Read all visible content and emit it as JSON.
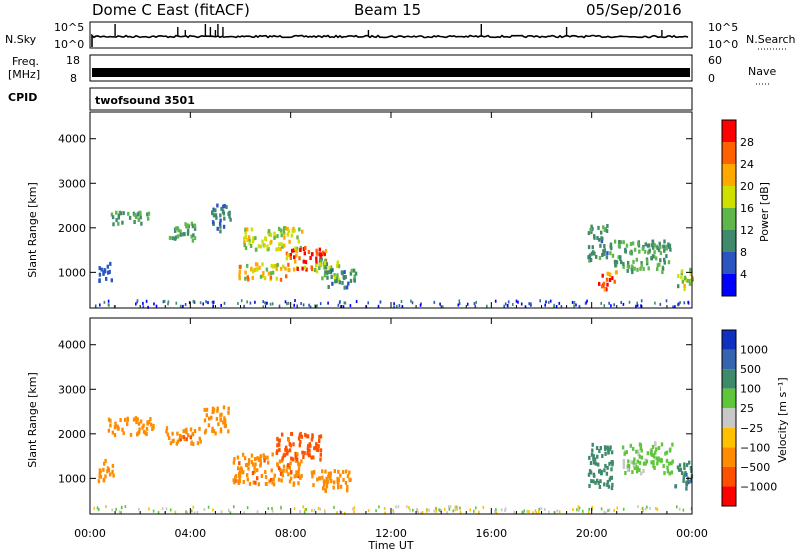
{
  "header": {
    "radar": "Dome C East (fitACF)",
    "beam": "Beam 15",
    "date": "05/Sep/2016"
  },
  "top_panels": {
    "nsky": {
      "label": "N.Sky",
      "y_ticks": [
        "10^5",
        "10^0"
      ]
    },
    "nsearch": {
      "label": "N.Search",
      "y_ticks": [
        "10^5",
        "10^0"
      ]
    },
    "freq": {
      "label_line1": "Freq.",
      "label_line2": "[MHz]",
      "y_ticks": [
        "18",
        "8"
      ]
    },
    "nave": {
      "label": "Nave",
      "y_ticks": [
        "60",
        "0"
      ]
    },
    "cpid": {
      "label": "CPID",
      "program": "twofsound 3501"
    }
  },
  "chart_data": [
    {
      "type": "heatmap",
      "name": "power",
      "ylabel": "Slant Range [km]",
      "xlabel": "",
      "y_ticks": [
        "1000",
        "2000",
        "3000",
        "4000"
      ],
      "ylim": [
        200,
        4600
      ],
      "colorbar": {
        "label": "Power [dB]",
        "ticks": [
          "4",
          "8",
          "12",
          "16",
          "20",
          "24",
          "28"
        ],
        "colors": [
          "#0000ff",
          "#2a55c0",
          "#3f8a6a",
          "#5fb64a",
          "#cfe000",
          "#ffa800",
          "#ff6000",
          "#ff0000"
        ]
      },
      "blobs": [
        {
          "t": 1.6,
          "r": 2250,
          "dt": 0.8,
          "dr": 150,
          "v": 12
        },
        {
          "t": 0.6,
          "r": 1050,
          "dt": 0.3,
          "dr": 200,
          "v": 6
        },
        {
          "t": 3.7,
          "r": 1950,
          "dt": 0.6,
          "dr": 200,
          "v": 12
        },
        {
          "t": 5.2,
          "r": 2250,
          "dt": 0.4,
          "dr": 300,
          "v": 8
        },
        {
          "t": 6.9,
          "r": 1050,
          "dt": 1.0,
          "dr": 180,
          "v": 20
        },
        {
          "t": 7.3,
          "r": 1800,
          "dt": 1.2,
          "dr": 250,
          "v": 18
        },
        {
          "t": 8.6,
          "r": 1350,
          "dt": 0.8,
          "dr": 250,
          "v": 26
        },
        {
          "t": 9.4,
          "r": 1100,
          "dt": 0.5,
          "dr": 250,
          "v": 14
        },
        {
          "t": 10.0,
          "r": 900,
          "dt": 0.6,
          "dr": 200,
          "v": 10
        },
        {
          "t": 20.6,
          "r": 850,
          "dt": 0.35,
          "dr": 200,
          "v": 28
        },
        {
          "t": 20.2,
          "r": 1700,
          "dt": 0.4,
          "dr": 400,
          "v": 10
        },
        {
          "t": 21.9,
          "r": 1400,
          "dt": 1.2,
          "dr": 350,
          "v": 12
        },
        {
          "t": 23.7,
          "r": 900,
          "dt": 0.3,
          "dr": 250,
          "v": 16
        }
      ]
    },
    {
      "type": "heatmap",
      "name": "velocity",
      "ylabel": "Slant Range [km]",
      "xlabel": "Time UT",
      "y_ticks": [
        "1000",
        "2000",
        "3000",
        "4000"
      ],
      "ylim": [
        200,
        4600
      ],
      "colorbar": {
        "label": "Velocity [m s⁻¹]",
        "ticks": [
          "1000",
          "500",
          "100",
          "25",
          "−25",
          "−100",
          "−500",
          "−1000"
        ],
        "colors": [
          "#1030c0",
          "#3565b0",
          "#3f8a6a",
          "#5fc63c",
          "#c8c8c8",
          "#ffc000",
          "#ff8c00",
          "#ff5000",
          "#ff0000"
        ]
      },
      "blobs": [
        {
          "t": 1.6,
          "r": 2200,
          "dt": 0.9,
          "dr": 200,
          "v": -300
        },
        {
          "t": 0.6,
          "r": 1200,
          "dt": 0.3,
          "dr": 250,
          "v": -200
        },
        {
          "t": 3.7,
          "r": 2000,
          "dt": 0.7,
          "dr": 200,
          "v": -400
        },
        {
          "t": 5.0,
          "r": 2350,
          "dt": 0.5,
          "dr": 300,
          "v": -250
        },
        {
          "t": 7.0,
          "r": 1250,
          "dt": 1.4,
          "dr": 350,
          "v": -400
        },
        {
          "t": 8.3,
          "r": 1750,
          "dt": 0.9,
          "dr": 300,
          "v": -700
        },
        {
          "t": 9.6,
          "r": 1000,
          "dt": 0.8,
          "dr": 250,
          "v": -350
        },
        {
          "t": 20.3,
          "r": 1300,
          "dt": 0.5,
          "dr": 500,
          "v": 200
        },
        {
          "t": 22.2,
          "r": 1500,
          "dt": 1.0,
          "dr": 350,
          "v": 30
        },
        {
          "t": 23.6,
          "r": 1100,
          "dt": 0.35,
          "dr": 300,
          "v": 400
        }
      ]
    }
  ],
  "x_axis": {
    "label": "Time UT",
    "ticks": [
      "00:00",
      "04:00",
      "08:00",
      "12:00",
      "16:00",
      "20:00",
      "00:00"
    ],
    "range_hours": [
      0,
      24
    ]
  }
}
